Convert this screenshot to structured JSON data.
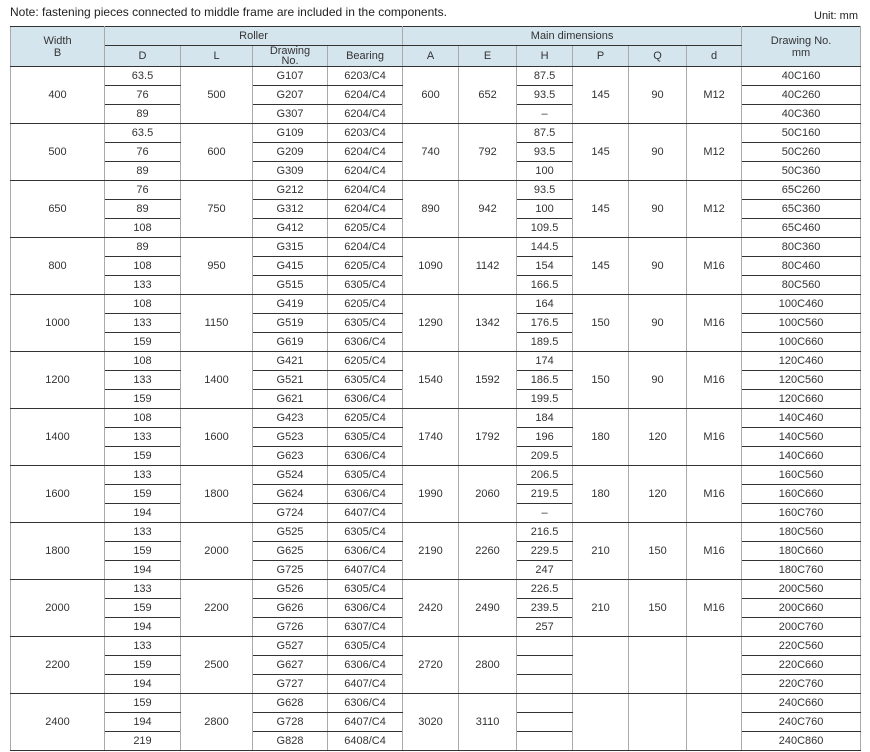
{
  "note": "Note: fastening pieces connected to middle frame are included in the components.",
  "unit": "Unit: mm",
  "header": {
    "width": [
      "Width",
      "B"
    ],
    "roller": "Roller",
    "main": "Main dimensions",
    "drawing_no": [
      "Drawing No.",
      "mm"
    ],
    "cols": {
      "D": "D",
      "L": "L",
      "drawing": [
        "Drawing",
        "No."
      ],
      "bearing": "Bearing",
      "A": "A",
      "E": "E",
      "H": "H",
      "P": "P",
      "Q": "Q",
      "d": "d"
    }
  },
  "groups": [
    {
      "B": "400",
      "D": [
        "63.5",
        "76",
        "89"
      ],
      "L": "500",
      "G": [
        "G107",
        "G207",
        "G307"
      ],
      "brg": [
        "6203/C4",
        "6204/C4",
        "6204/C4"
      ],
      "A": "600",
      "E": "652",
      "H": [
        "87.5",
        "93.5",
        "–"
      ],
      "P": "145",
      "Q": "90",
      "d": "M12",
      "no": [
        "40C160",
        "40C260",
        "40C360"
      ]
    },
    {
      "B": "500",
      "D": [
        "63.5",
        "76",
        "89"
      ],
      "L": "600",
      "G": [
        "G109",
        "G209",
        "G309"
      ],
      "brg": [
        "6203/C4",
        "6204/C4",
        "6204/C4"
      ],
      "A": "740",
      "E": "792",
      "H": [
        "87.5",
        "93.5",
        "100"
      ],
      "P": "145",
      "Q": "90",
      "d": "M12",
      "no": [
        "50C160",
        "50C260",
        "50C360"
      ]
    },
    {
      "B": "650",
      "D": [
        "76",
        "89",
        "108"
      ],
      "L": "750",
      "G": [
        "G212",
        "G312",
        "G412"
      ],
      "brg": [
        "6204/C4",
        "6204/C4",
        "6205/C4"
      ],
      "A": "890",
      "E": "942",
      "H": [
        "93.5",
        "100",
        "109.5"
      ],
      "P": "145",
      "Q": "90",
      "d": "M12",
      "no": [
        "65C260",
        "65C360",
        "65C460"
      ]
    },
    {
      "B": "800",
      "D": [
        "89",
        "108",
        "133"
      ],
      "L": "950",
      "G": [
        "G315",
        "G415",
        "G515"
      ],
      "brg": [
        "6204/C4",
        "6205/C4",
        "6305/C4"
      ],
      "A": "1090",
      "E": "1142",
      "H": [
        "144.5",
        "154",
        "166.5"
      ],
      "P": "145",
      "Q": "90",
      "d": "M16",
      "no": [
        "80C360",
        "80C460",
        "80C560"
      ]
    },
    {
      "B": "1000",
      "D": [
        "108",
        "133",
        "159"
      ],
      "L": "1150",
      "G": [
        "G419",
        "G519",
        "G619"
      ],
      "brg": [
        "6205/C4",
        "6305/C4",
        "6306/C4"
      ],
      "A": "1290",
      "E": "1342",
      "H": [
        "164",
        "176.5",
        "189.5"
      ],
      "P": "150",
      "Q": "90",
      "d": "M16",
      "no": [
        "100C460",
        "100C560",
        "100C660"
      ]
    },
    {
      "B": "1200",
      "D": [
        "108",
        "133",
        "159"
      ],
      "L": "1400",
      "G": [
        "G421",
        "G521",
        "G621"
      ],
      "brg": [
        "6205/C4",
        "6305/C4",
        "6306/C4"
      ],
      "A": "1540",
      "E": "1592",
      "H": [
        "174",
        "186.5",
        "199.5"
      ],
      "P": "150",
      "Q": "90",
      "d": "M16",
      "no": [
        "120C460",
        "120C560",
        "120C660"
      ]
    },
    {
      "B": "1400",
      "D": [
        "108",
        "133",
        "159"
      ],
      "L": "1600",
      "G": [
        "G423",
        "G523",
        "G623"
      ],
      "brg": [
        "6205/C4",
        "6305/C4",
        "6306/C4"
      ],
      "A": "1740",
      "E": "1792",
      "H": [
        "184",
        "196",
        "209.5"
      ],
      "P": "180",
      "Q": "120",
      "d": "M16",
      "no": [
        "140C460",
        "140C560",
        "140C660"
      ]
    },
    {
      "B": "1600",
      "D": [
        "133",
        "159",
        "194"
      ],
      "L": "1800",
      "G": [
        "G524",
        "G624",
        "G724"
      ],
      "brg": [
        "6305/C4",
        "6306/C4",
        "6407/C4"
      ],
      "A": "1990",
      "E": "2060",
      "H": [
        "206.5",
        "219.5",
        "–"
      ],
      "P": "180",
      "Q": "120",
      "d": "M16",
      "no": [
        "160C560",
        "160C660",
        "160C760"
      ]
    },
    {
      "B": "1800",
      "D": [
        "133",
        "159",
        "194"
      ],
      "L": "2000",
      "G": [
        "G525",
        "G625",
        "G725"
      ],
      "brg": [
        "6305/C4",
        "6306/C4",
        "6407/C4"
      ],
      "A": "2190",
      "E": "2260",
      "H": [
        "216.5",
        "229.5",
        "247"
      ],
      "P": "210",
      "Q": "150",
      "d": "M16",
      "no": [
        "180C560",
        "180C660",
        "180C760"
      ]
    },
    {
      "B": "2000",
      "D": [
        "133",
        "159",
        "194"
      ],
      "L": "2200",
      "G": [
        "G526",
        "G626",
        "G726"
      ],
      "brg": [
        "6305/C4",
        "6306/C4",
        "6307/C4"
      ],
      "A": "2420",
      "E": "2490",
      "H": [
        "226.5",
        "239.5",
        "257"
      ],
      "P": "210",
      "Q": "150",
      "d": "M16",
      "no": [
        "200C560",
        "200C660",
        "200C760"
      ]
    },
    {
      "B": "2200",
      "D": [
        "133",
        "159",
        "194"
      ],
      "L": "2500",
      "G": [
        "G527",
        "G627",
        "G727"
      ],
      "brg": [
        "6305/C4",
        "6306/C4",
        "6407/C4"
      ],
      "A": "2720",
      "E": "2800",
      "H": [
        "",
        "",
        ""
      ],
      "P": "",
      "Q": "",
      "d": "",
      "no": [
        "220C560",
        "220C660",
        "220C760"
      ]
    },
    {
      "B": "2400",
      "D": [
        "159",
        "194",
        "219"
      ],
      "L": "2800",
      "G": [
        "G628",
        "G728",
        "G828"
      ],
      "brg": [
        "6306/C4",
        "6407/C4",
        "6408/C4"
      ],
      "A": "3020",
      "E": "3110",
      "H": [
        "",
        "",
        ""
      ],
      "P": "",
      "Q": "",
      "d": "",
      "no": [
        "240C660",
        "240C760",
        "240C860"
      ]
    }
  ]
}
